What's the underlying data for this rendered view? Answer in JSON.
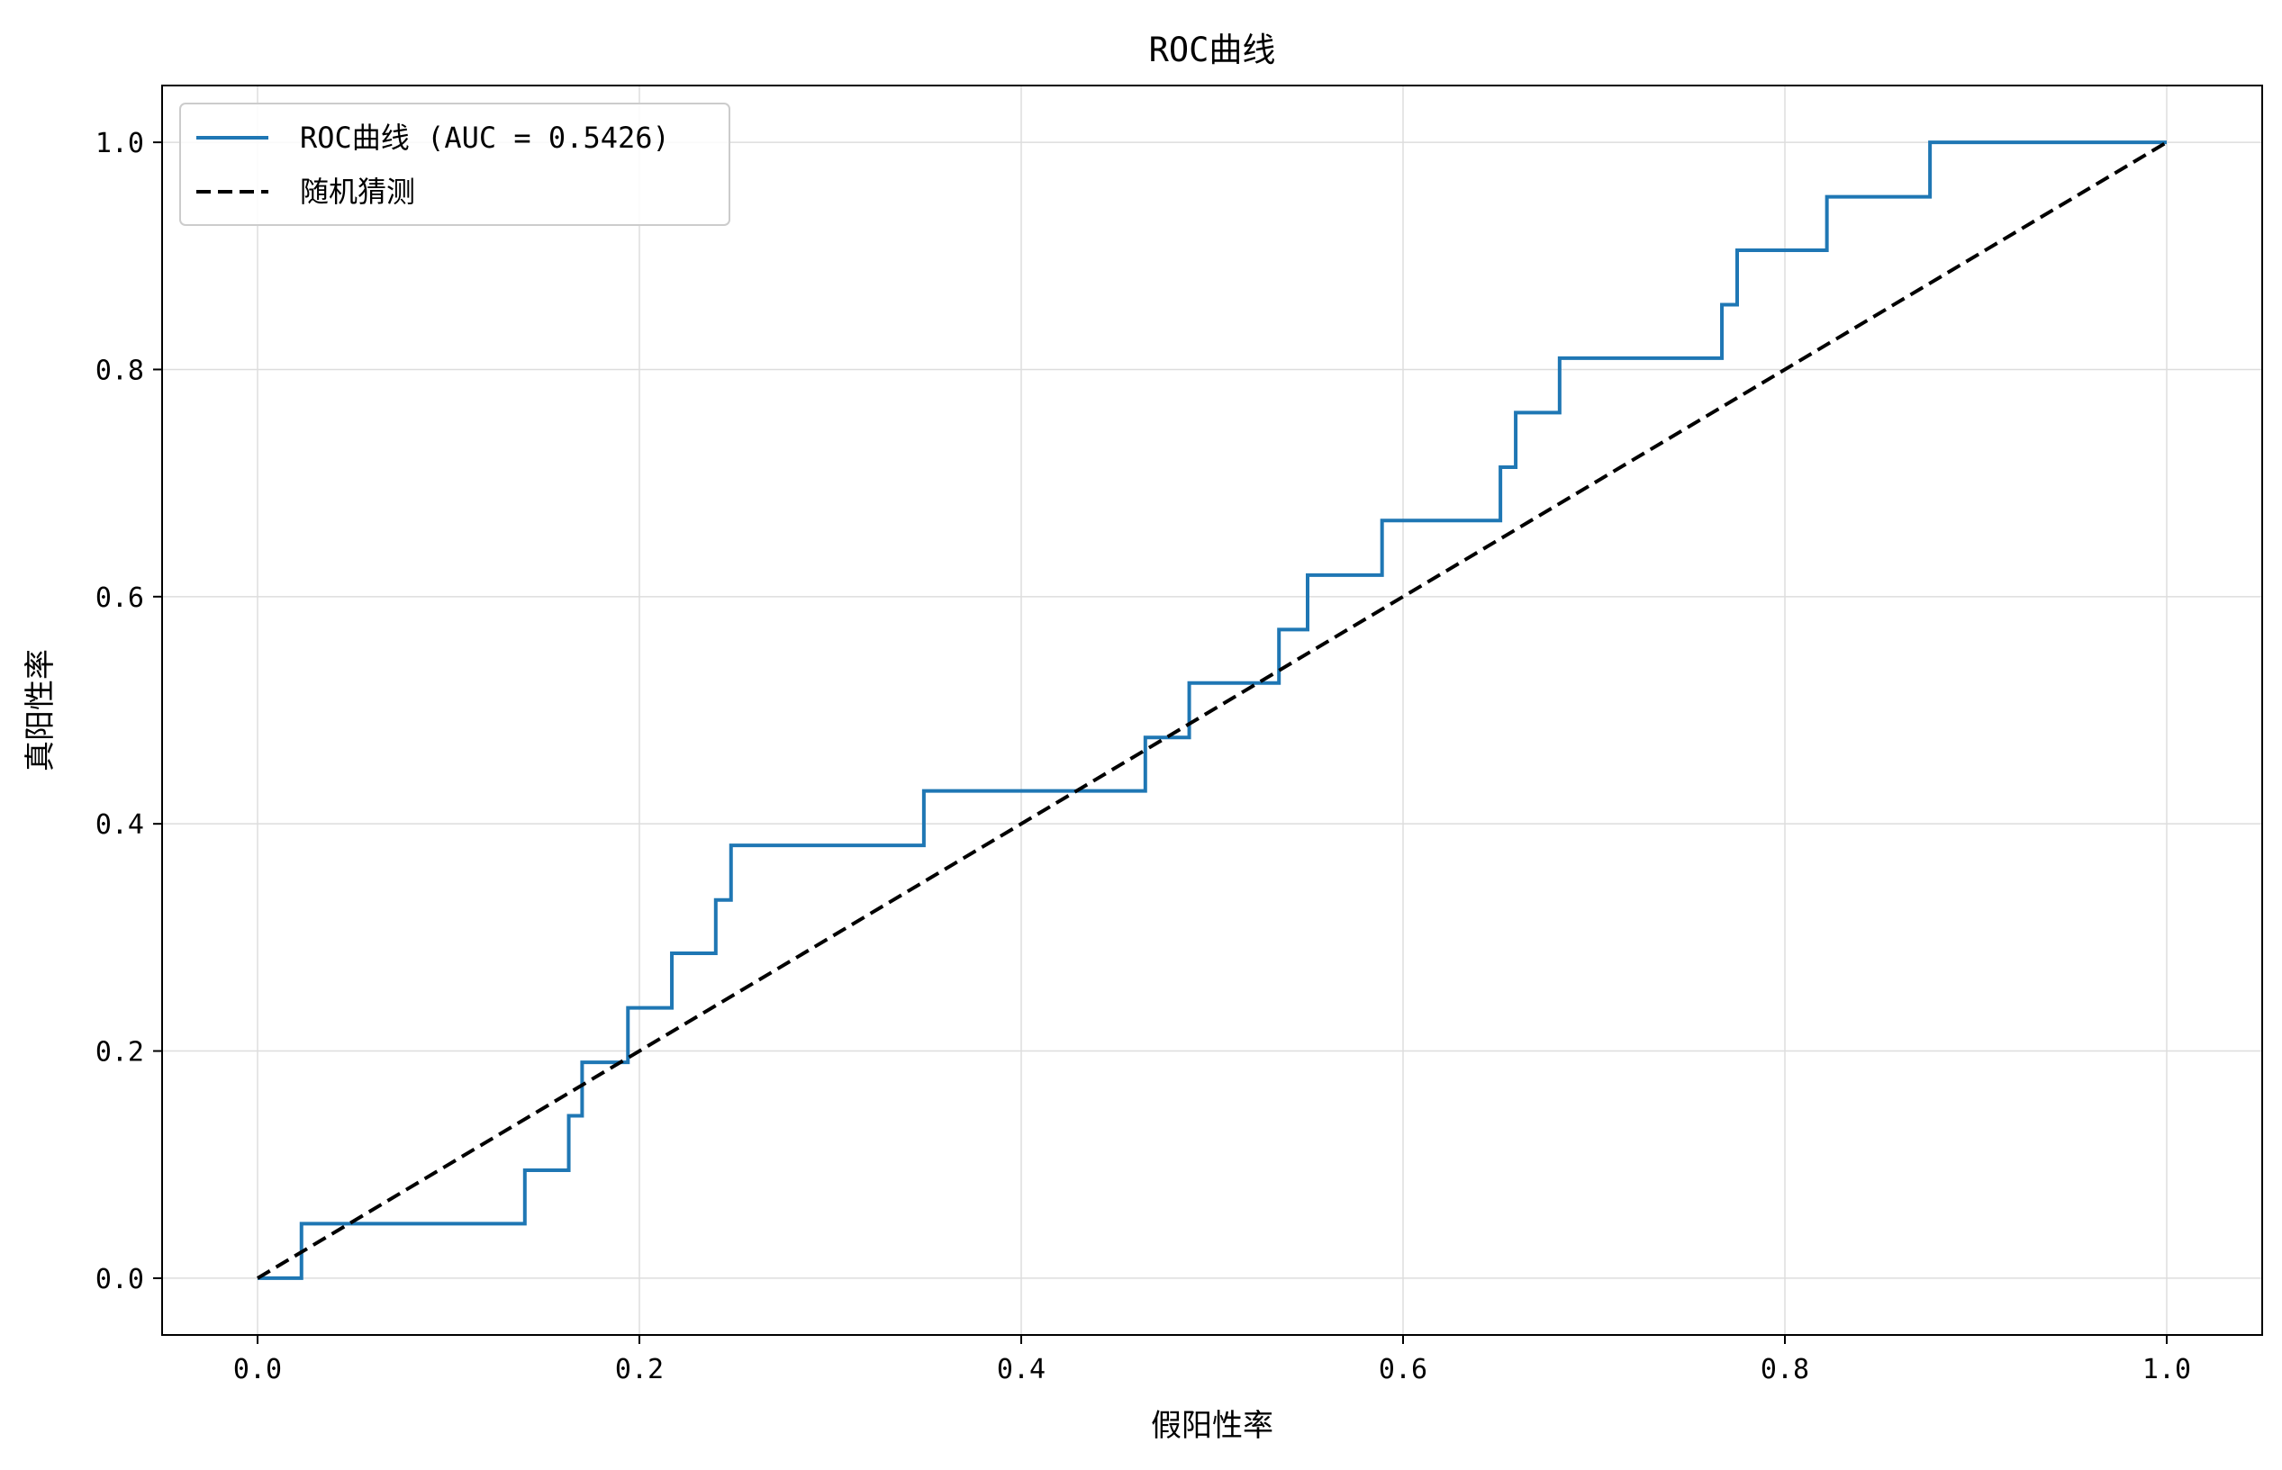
{
  "colors": {
    "roc_line": "#1f77b4",
    "random_line": "#000000",
    "grid": "#dddddd",
    "axes": "#000000",
    "legend_border": "#cccccc",
    "background": "#ffffff"
  },
  "chart_data": {
    "type": "line",
    "title": "ROC曲线",
    "xlabel": "假阳性率",
    "ylabel": "真阳性率",
    "xlim": [
      -0.05,
      1.05
    ],
    "ylim": [
      -0.05,
      1.05
    ],
    "grid": true,
    "legend_position": "top-left",
    "x_ticks": [
      "0.0",
      "0.2",
      "0.4",
      "0.6",
      "0.8",
      "1.0"
    ],
    "y_ticks": [
      "0.0",
      "0.2",
      "0.4",
      "0.6",
      "0.8",
      "1.0"
    ],
    "series": [
      {
        "name": "ROC曲线 (AUC = 0.5426)",
        "style": "solid",
        "points": [
          [
            0.0,
            0.0
          ],
          [
            0.023,
            0.0
          ],
          [
            0.023,
            0.048
          ],
          [
            0.14,
            0.048
          ],
          [
            0.14,
            0.095
          ],
          [
            0.163,
            0.095
          ],
          [
            0.163,
            0.143
          ],
          [
            0.17,
            0.143
          ],
          [
            0.17,
            0.19
          ],
          [
            0.194,
            0.19
          ],
          [
            0.194,
            0.238
          ],
          [
            0.217,
            0.238
          ],
          [
            0.217,
            0.286
          ],
          [
            0.24,
            0.286
          ],
          [
            0.24,
            0.333
          ],
          [
            0.248,
            0.333
          ],
          [
            0.248,
            0.381
          ],
          [
            0.349,
            0.381
          ],
          [
            0.349,
            0.429
          ],
          [
            0.465,
            0.429
          ],
          [
            0.465,
            0.476
          ],
          [
            0.488,
            0.476
          ],
          [
            0.488,
            0.524
          ],
          [
            0.535,
            0.524
          ],
          [
            0.535,
            0.571
          ],
          [
            0.55,
            0.571
          ],
          [
            0.55,
            0.619
          ],
          [
            0.589,
            0.619
          ],
          [
            0.589,
            0.667
          ],
          [
            0.651,
            0.667
          ],
          [
            0.651,
            0.714
          ],
          [
            0.659,
            0.714
          ],
          [
            0.659,
            0.762
          ],
          [
            0.682,
            0.762
          ],
          [
            0.682,
            0.81
          ],
          [
            0.767,
            0.81
          ],
          [
            0.767,
            0.857
          ],
          [
            0.775,
            0.857
          ],
          [
            0.775,
            0.905
          ],
          [
            0.822,
            0.905
          ],
          [
            0.822,
            0.952
          ],
          [
            0.876,
            0.952
          ],
          [
            0.876,
            1.0
          ],
          [
            1.0,
            1.0
          ]
        ]
      },
      {
        "name": "随机猜测",
        "style": "dashed",
        "points": [
          [
            0.0,
            0.0
          ],
          [
            1.0,
            1.0
          ]
        ]
      }
    ]
  }
}
